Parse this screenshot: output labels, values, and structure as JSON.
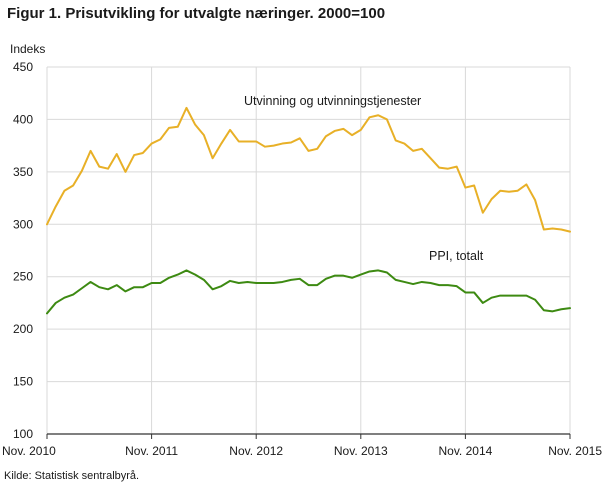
{
  "figure": {
    "title": "Figur 1. Prisutvikling for utvalgte næringer. 2000=100",
    "source": "Kilde: Statistisk sentralbyrå."
  },
  "colors": {
    "grid": "#d9d9d9",
    "axis": "#333333",
    "series_oil": "#e8b027",
    "series_ppi": "#3d8a12"
  },
  "chart_data": {
    "type": "line",
    "title": "Figur 1. Prisutvikling for utvalgte næringer. 2000=100",
    "ylabel": "Indeks",
    "xlabel": "",
    "ylim": [
      100,
      450
    ],
    "yticks": [
      "100",
      "150",
      "200",
      "250",
      "300",
      "350",
      "400",
      "450"
    ],
    "xticks": [
      "Nov. 2010",
      "Nov. 2011",
      "Nov. 2012",
      "Nov. 2013",
      "Nov. 2014",
      "Nov. 2015"
    ],
    "grid": true,
    "x": [
      "2010-11",
      "2010-12",
      "2011-01",
      "2011-02",
      "2011-03",
      "2011-04",
      "2011-05",
      "2011-06",
      "2011-07",
      "2011-08",
      "2011-09",
      "2011-10",
      "2011-11",
      "2011-12",
      "2012-01",
      "2012-02",
      "2012-03",
      "2012-04",
      "2012-05",
      "2012-06",
      "2012-07",
      "2012-08",
      "2012-09",
      "2012-10",
      "2012-11",
      "2012-12",
      "2013-01",
      "2013-02",
      "2013-03",
      "2013-04",
      "2013-05",
      "2013-06",
      "2013-07",
      "2013-08",
      "2013-09",
      "2013-10",
      "2013-11",
      "2013-12",
      "2014-01",
      "2014-02",
      "2014-03",
      "2014-04",
      "2014-05",
      "2014-06",
      "2014-07",
      "2014-08",
      "2014-09",
      "2014-10",
      "2014-11",
      "2014-12",
      "2015-01",
      "2015-02",
      "2015-03",
      "2015-04",
      "2015-05",
      "2015-06",
      "2015-07",
      "2015-08",
      "2015-09",
      "2015-10",
      "2015-11"
    ],
    "series": [
      {
        "name": "Utvinning og utvinningstjenester",
        "color": "#e8b027",
        "values": [
          300,
          317,
          332,
          337,
          351,
          370,
          355,
          353,
          367,
          350,
          366,
          368,
          377,
          381,
          392,
          393,
          411,
          395,
          385,
          363,
          377,
          390,
          379,
          379,
          379,
          374,
          375,
          377,
          378,
          382,
          370,
          372,
          384,
          389,
          391,
          385,
          390,
          402,
          404,
          400,
          380,
          377,
          370,
          372,
          363,
          354,
          353,
          355,
          335,
          337,
          311,
          324,
          332,
          331,
          332,
          338,
          323,
          295,
          296,
          295,
          293
        ],
        "label_text": "Utvinning og utvinningstjenester"
      },
      {
        "name": "PPI, totalt",
        "color": "#3d8a12",
        "values": [
          215,
          225,
          230,
          233,
          239,
          245,
          240,
          238,
          242,
          236,
          240,
          240,
          244,
          244,
          249,
          252,
          256,
          252,
          247,
          238,
          241,
          246,
          244,
          245,
          244,
          244,
          244,
          245,
          247,
          248,
          242,
          242,
          248,
          251,
          251,
          249,
          252,
          255,
          256,
          254,
          247,
          245,
          243,
          245,
          244,
          242,
          242,
          241,
          235,
          235,
          225,
          230,
          232,
          232,
          232,
          232,
          228,
          218,
          217,
          219,
          220
        ],
        "label_text": "PPI, totalt"
      }
    ]
  }
}
